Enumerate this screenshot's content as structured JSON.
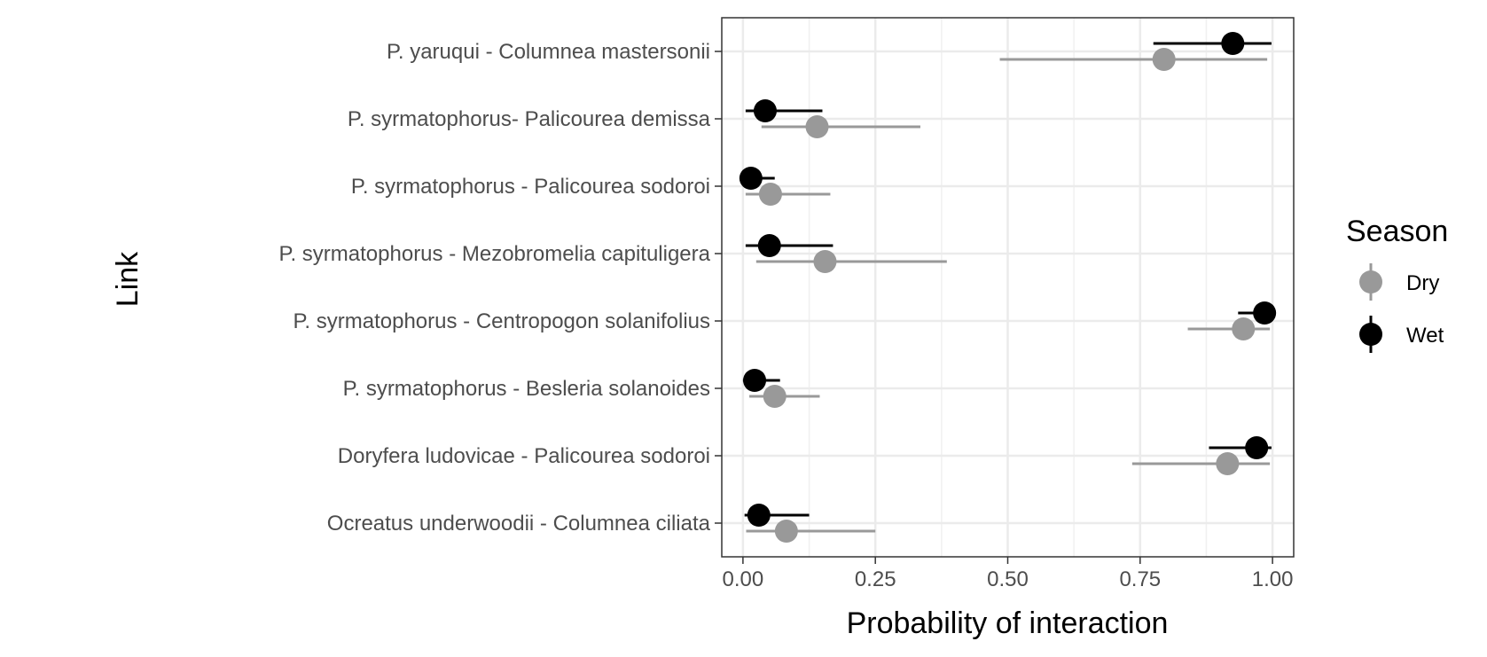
{
  "chart_data": {
    "type": "scatter",
    "subtype": "dot-with-interval",
    "orientation": "horizontal",
    "title": "",
    "xlabel": "Probability of interaction",
    "ylabel": "Link",
    "xlim": [
      -0.04,
      1.04
    ],
    "xticks": [
      "0.00",
      "0.25",
      "0.50",
      "0.75",
      "1.00"
    ],
    "xtick_values": [
      0,
      0.25,
      0.5,
      0.75,
      1.0
    ],
    "grid": true,
    "legend": {
      "title": "Season",
      "position": "right"
    },
    "categories": [
      "P. yaruqui - Columnea mastersonii",
      "P. syrmatophorus- Palicourea demissa",
      "P. syrmatophorus - Palicourea sodoroi",
      "P. syrmatophorus - Mezobromelia capituligera",
      "P. syrmatophorus - Centropogon solanifolius",
      "P. syrmatophorus - Besleria solanoides",
      "Doryfera ludovicae - Palicourea sodoroi",
      "Ocreatus underwoodii - Columnea ciliata"
    ],
    "series": [
      {
        "name": "Dry",
        "color": "#999999",
        "values": [
          0.795,
          0.14,
          0.052,
          0.155,
          0.945,
          0.06,
          0.915,
          0.082
        ],
        "lower": [
          0.485,
          0.035,
          0.005,
          0.025,
          0.84,
          0.012,
          0.735,
          0.006
        ],
        "upper": [
          0.99,
          0.335,
          0.165,
          0.385,
          0.995,
          0.145,
          0.995,
          0.25
        ]
      },
      {
        "name": "Wet",
        "color": "#000000",
        "values": [
          0.925,
          0.042,
          0.015,
          0.05,
          0.985,
          0.022,
          0.97,
          0.03
        ],
        "lower": [
          0.775,
          0.005,
          0.0,
          0.005,
          0.935,
          0.0,
          0.88,
          0.003
        ],
        "upper": [
          0.998,
          0.15,
          0.06,
          0.17,
          1.0,
          0.07,
          0.998,
          0.125
        ]
      }
    ]
  }
}
